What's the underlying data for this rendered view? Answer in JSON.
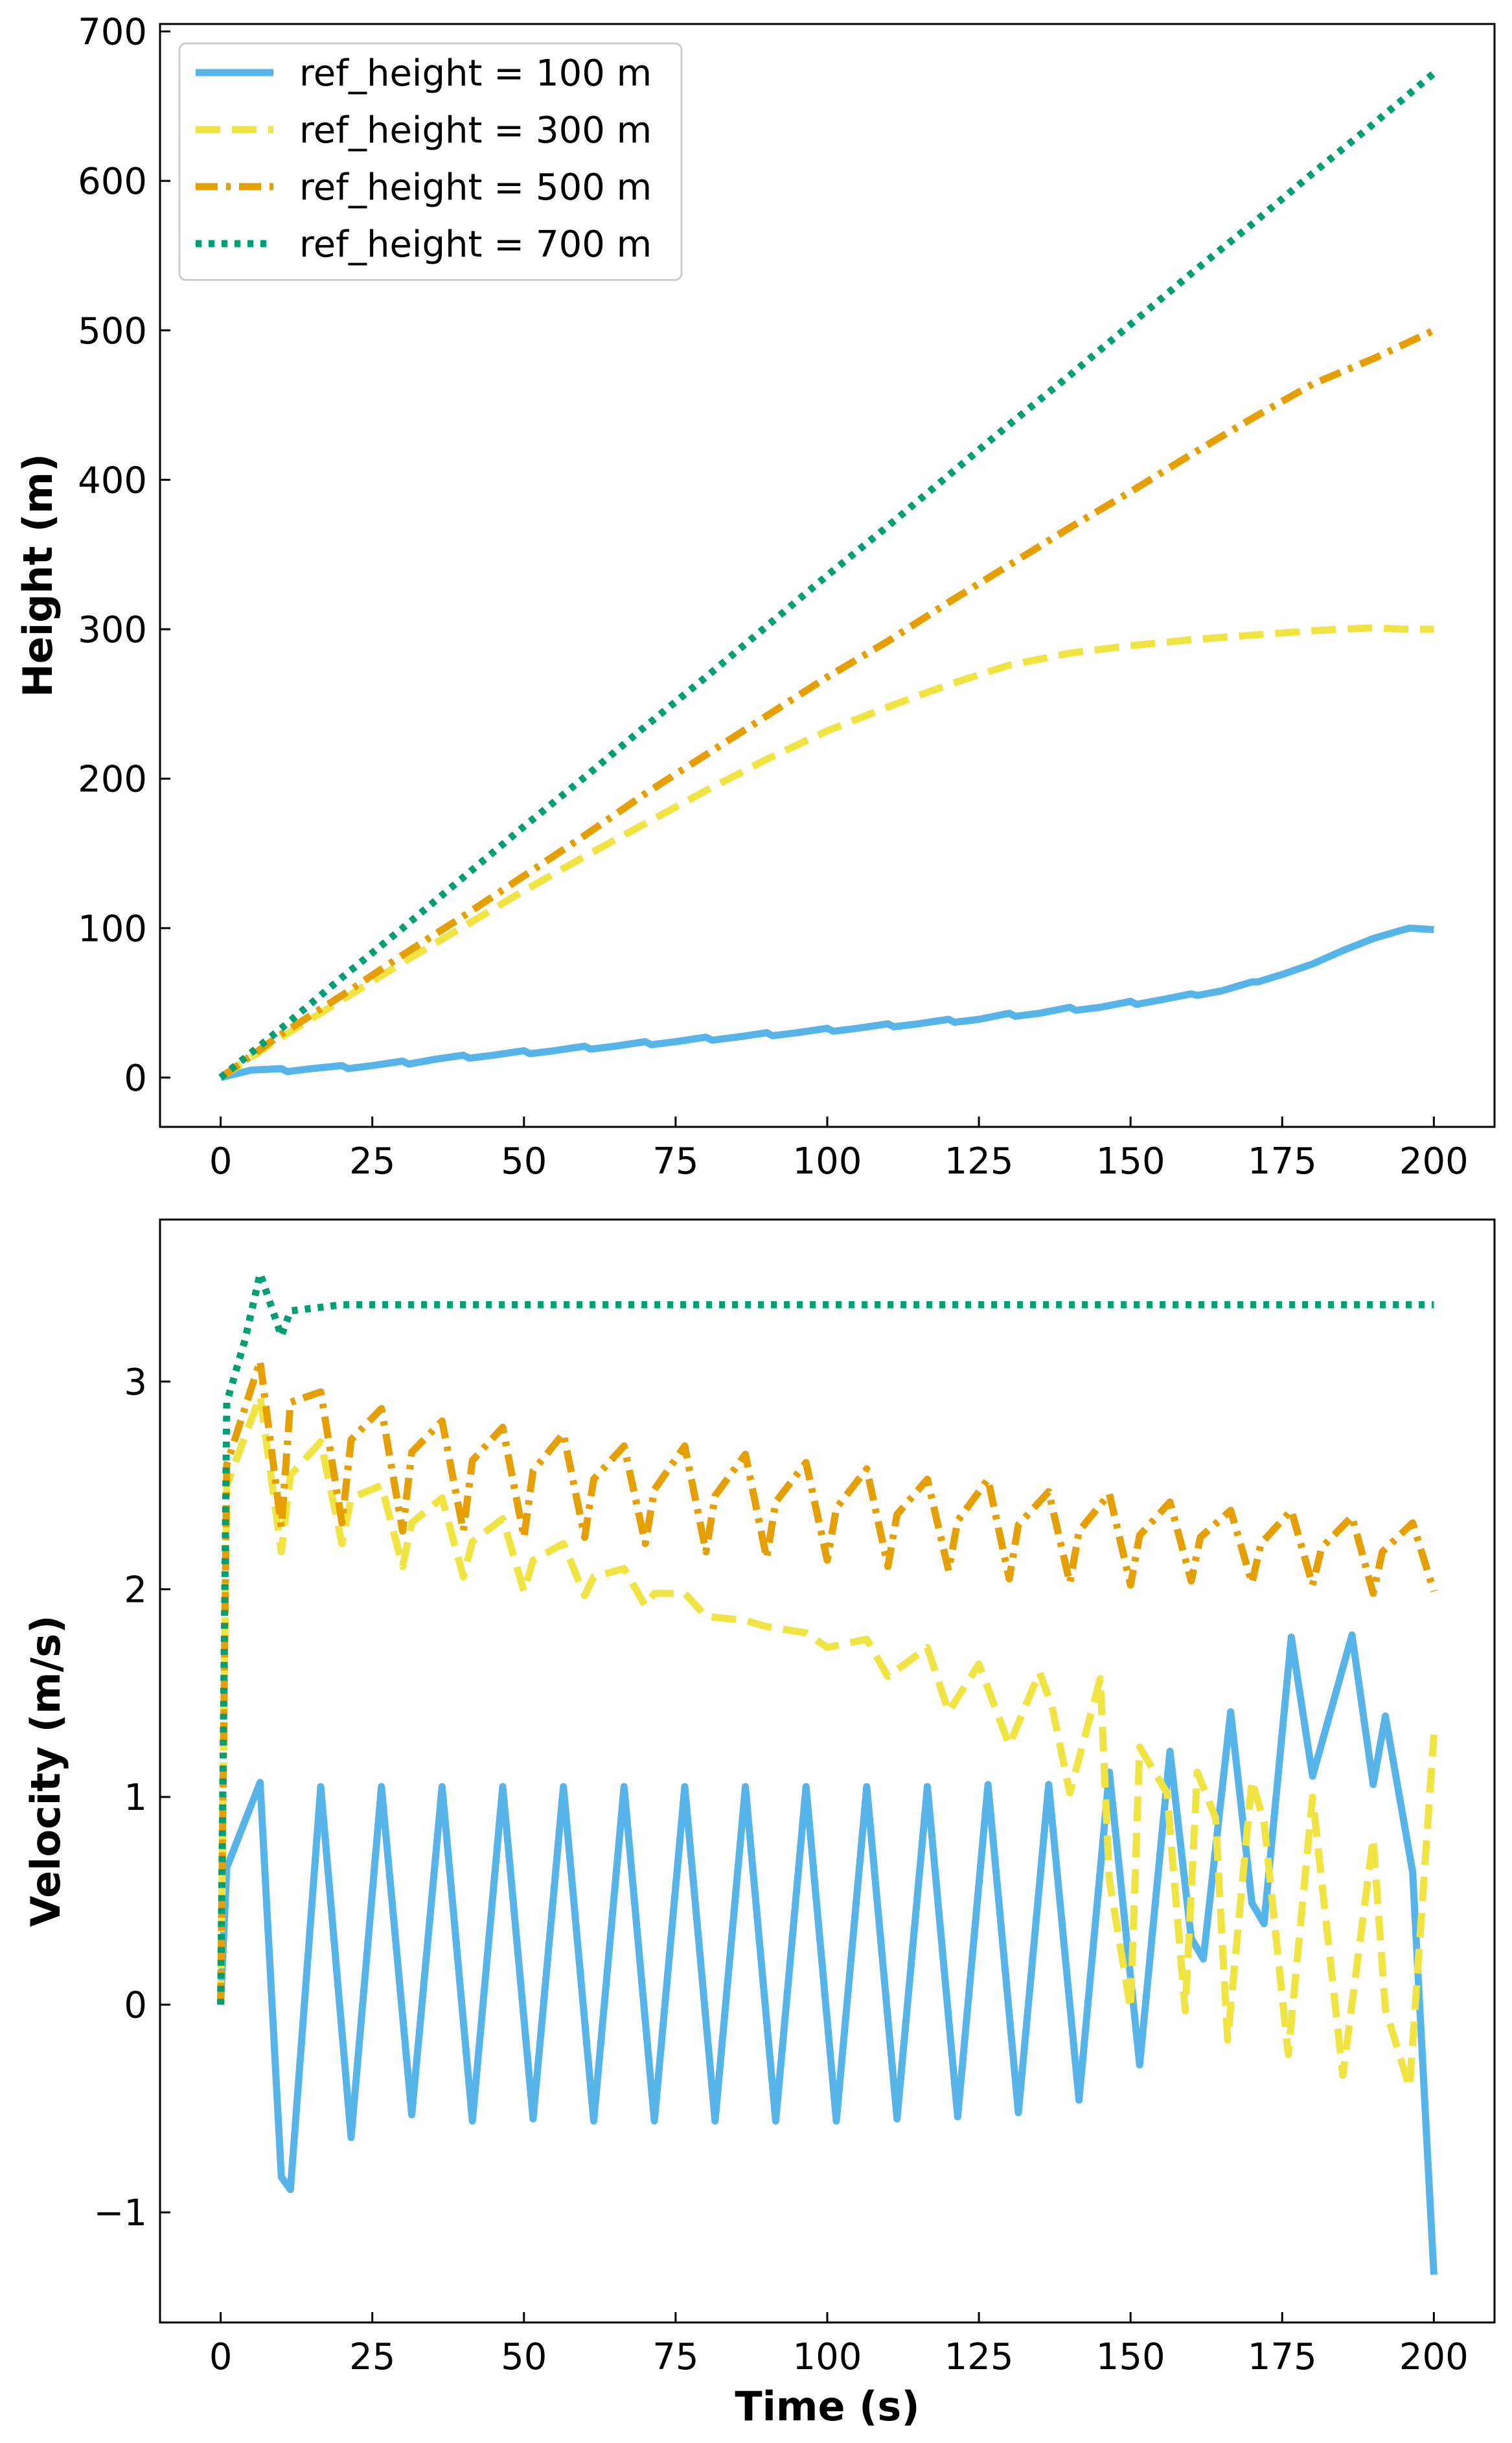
{
  "colors": {
    "ref100": "#56B4E9",
    "ref300": "#F0E442",
    "ref500": "#E69F00",
    "ref700": "#009E73"
  },
  "chart_data": [
    {
      "type": "line",
      "title": "",
      "xlabel": "",
      "ylabel": "Height (m)",
      "xlim": [
        -10,
        210
      ],
      "ylim": [
        -33,
        705
      ],
      "xticks": [
        0,
        25,
        50,
        75,
        100,
        125,
        150,
        175,
        200
      ],
      "xtick_labels": [
        "0",
        "25",
        "50",
        "75",
        "100",
        "125",
        "150",
        "175",
        "200"
      ],
      "yticks": [
        0,
        100,
        200,
        300,
        400,
        500,
        600,
        700
      ],
      "ytick_labels": [
        "0",
        "100",
        "200",
        "300",
        "400",
        "500",
        "600",
        "700"
      ],
      "grid": false,
      "legend": "upper-left",
      "series": [
        {
          "name": "ref_height = 100 m",
          "color": "#56B4E9",
          "style": "solid",
          "x": [
            0,
            5,
            10,
            11,
            15,
            20,
            21,
            25,
            30,
            31,
            35,
            40,
            41,
            45,
            50,
            51,
            55,
            60,
            61,
            65,
            70,
            71,
            75,
            80,
            81,
            85,
            90,
            91,
            95,
            100,
            101,
            105,
            110,
            111,
            115,
            120,
            121,
            125,
            130,
            131,
            135,
            140,
            141,
            145,
            150,
            151,
            155,
            160,
            161,
            165,
            170,
            171,
            175,
            180,
            185,
            190,
            195,
            196,
            200
          ],
          "y": [
            0,
            5,
            6,
            4,
            6,
            8,
            6,
            8,
            11,
            9,
            12,
            15,
            13,
            15,
            18,
            16,
            18,
            21,
            19,
            21,
            24,
            22,
            24,
            27,
            25,
            27,
            30,
            28,
            30,
            33,
            31,
            33,
            36,
            34,
            36,
            39,
            37,
            39,
            43,
            41,
            43,
            47,
            45,
            47,
            51,
            49,
            52,
            56,
            55,
            58,
            64,
            64,
            69,
            76,
            85,
            93,
            99,
            100,
            99
          ]
        },
        {
          "name": "ref_height = 300 m",
          "color": "#F0E442",
          "style": "dashed",
          "x": [
            0,
            10,
            20,
            30,
            40,
            50,
            60,
            70,
            80,
            90,
            100,
            110,
            120,
            130,
            140,
            150,
            160,
            170,
            180,
            190,
            195,
            200
          ],
          "y": [
            0,
            27,
            52,
            77,
            101,
            125,
            148,
            170,
            192,
            213,
            232,
            248,
            263,
            276,
            284,
            289,
            293,
            296,
            299,
            301,
            300,
            300
          ]
        },
        {
          "name": "ref_height = 500 m",
          "color": "#E69F00",
          "style": "dashdot",
          "x": [
            0,
            10,
            20,
            30,
            40,
            50,
            60,
            70,
            80,
            90,
            100,
            110,
            120,
            130,
            140,
            150,
            160,
            170,
            180,
            190,
            200
          ],
          "y": [
            0,
            29,
            55,
            82,
            108,
            135,
            162,
            190,
            216,
            242,
            268,
            292,
            318,
            343,
            368,
            392,
            417,
            441,
            464,
            481,
            500
          ]
        },
        {
          "name": "ref_height = 700 m",
          "color": "#009E73",
          "style": "dotted",
          "x": [
            0,
            10,
            20,
            30,
            40,
            50,
            60,
            70,
            80,
            90,
            100,
            110,
            120,
            130,
            140,
            150,
            160,
            170,
            180,
            190,
            200
          ],
          "y": [
            0,
            33,
            67,
            100,
            134,
            168,
            201,
            235,
            268,
            302,
            336,
            369,
            403,
            437,
            470,
            504,
            538,
            571,
            605,
            638,
            672
          ]
        }
      ]
    },
    {
      "type": "line",
      "title": "",
      "xlabel": "Time (s)",
      "ylabel": "Velocity (m/s)",
      "xlim": [
        -10,
        210
      ],
      "ylim": [
        -1.53,
        3.78
      ],
      "xticks": [
        0,
        25,
        50,
        75,
        100,
        125,
        150,
        175,
        200
      ],
      "xtick_labels": [
        "0",
        "25",
        "50",
        "75",
        "100",
        "125",
        "150",
        "175",
        "200"
      ],
      "yticks": [
        -1,
        0,
        1,
        2,
        3
      ],
      "ytick_labels": [
        "−1",
        "0",
        "1",
        "2",
        "3"
      ],
      "grid": false,
      "legend": "none",
      "series": [
        {
          "name": "ref_height = 100 m",
          "color": "#56B4E9",
          "style": "solid",
          "x": [
            0,
            1,
            6.5,
            10,
            11.5,
            16.5,
            21.5,
            26.5,
            31.5,
            36.5,
            41.5,
            46.5,
            51.5,
            56.5,
            61.5,
            66.5,
            71.5,
            76.5,
            81.5,
            86.5,
            91.5,
            96.5,
            101.5,
            106.5,
            111.5,
            116.5,
            121.5,
            126.5,
            131.5,
            136.5,
            141.5,
            146.5,
            151.5,
            156.5,
            160,
            162,
            166.5,
            170,
            172,
            176.5,
            180,
            186.5,
            190,
            192,
            196.5,
            200
          ],
          "y": [
            0,
            0.66,
            1.07,
            -0.83,
            -0.89,
            1.05,
            -0.64,
            1.05,
            -0.53,
            1.05,
            -0.56,
            1.05,
            -0.55,
            1.05,
            -0.56,
            1.05,
            -0.56,
            1.05,
            -0.56,
            1.05,
            -0.56,
            1.05,
            -0.56,
            1.05,
            -0.55,
            1.05,
            -0.54,
            1.06,
            -0.52,
            1.06,
            -0.46,
            1.12,
            -0.29,
            1.22,
            0.32,
            0.22,
            1.41,
            0.49,
            0.39,
            1.77,
            1.1,
            1.78,
            1.06,
            1.39,
            0.64,
            -1.3
          ]
        },
        {
          "name": "ref_height = 300 m",
          "color": "#F0E442",
          "style": "dashed",
          "x": [
            0,
            1,
            6.5,
            10,
            11.5,
            16.5,
            20,
            21.5,
            26.5,
            30,
            31.5,
            36.5,
            40,
            41.5,
            46.5,
            50,
            51.5,
            56.5,
            60,
            61.5,
            66.5,
            70,
            71.5,
            76.5,
            80,
            86.5,
            90,
            96.5,
            100,
            106.5,
            110,
            116.5,
            120,
            125,
            130,
            135,
            137,
            140,
            145,
            146.5,
            150,
            151.5,
            156,
            159,
            161,
            164,
            166,
            170,
            172,
            176,
            180,
            185,
            190,
            192,
            196,
            200
          ],
          "y": [
            0,
            2.5,
            2.93,
            2.18,
            2.55,
            2.71,
            2.22,
            2.44,
            2.5,
            2.11,
            2.32,
            2.44,
            2.06,
            2.23,
            2.34,
            1.99,
            2.14,
            2.22,
            1.97,
            2.06,
            2.1,
            1.92,
            1.98,
            1.98,
            1.87,
            1.85,
            1.82,
            1.79,
            1.72,
            1.76,
            1.58,
            1.72,
            1.41,
            1.64,
            1.25,
            1.6,
            1.44,
            1.02,
            1.57,
            0.6,
            -0.02,
            1.24,
            1.02,
            -0.03,
            1.12,
            0.9,
            -0.17,
            1.08,
            0.88,
            -0.24,
            1.0,
            -0.34,
            0.8,
            -0.02,
            -0.4,
            1.3
          ]
        },
        {
          "name": "ref_height = 500 m",
          "color": "#E69F00",
          "style": "dashdot",
          "x": [
            0,
            1,
            6.5,
            10,
            11.5,
            16.5,
            20,
            21.5,
            26.5,
            30,
            31.5,
            36.5,
            40,
            41.5,
            46.5,
            50,
            51.5,
            56.5,
            60,
            61.5,
            66.5,
            70,
            71.5,
            76.5,
            80,
            81.5,
            86.5,
            90,
            91.5,
            96.5,
            100,
            101.5,
            106.5,
            110,
            111.5,
            116.5,
            120,
            121.5,
            126.5,
            130,
            131.5,
            136.5,
            140,
            141.5,
            146.5,
            150,
            151.5,
            156.5,
            160,
            161.5,
            166.5,
            170,
            171.5,
            176.5,
            180,
            181.5,
            186.5,
            190,
            191.5,
            196.5,
            200
          ],
          "y": [
            0,
            2.6,
            3.1,
            2.3,
            2.9,
            2.95,
            2.32,
            2.72,
            2.87,
            2.28,
            2.66,
            2.81,
            2.28,
            2.62,
            2.78,
            2.25,
            2.57,
            2.75,
            2.25,
            2.53,
            2.69,
            2.22,
            2.48,
            2.69,
            2.18,
            2.45,
            2.65,
            2.15,
            2.42,
            2.61,
            2.14,
            2.39,
            2.58,
            2.11,
            2.36,
            2.53,
            2.09,
            2.33,
            2.53,
            2.05,
            2.31,
            2.47,
            2.03,
            2.28,
            2.46,
            2.02,
            2.26,
            2.42,
            2.04,
            2.25,
            2.38,
            2.03,
            2.22,
            2.38,
            2.02,
            2.2,
            2.35,
            1.98,
            2.18,
            2.32,
            1.99
          ]
        },
        {
          "name": "ref_height = 700 m",
          "color": "#009E73",
          "style": "dotted",
          "x": [
            0,
            1,
            4,
            6.5,
            10,
            11.5,
            20,
            40,
            60,
            80,
            100,
            120,
            140,
            160,
            180,
            200
          ],
          "y": [
            0,
            2.9,
            3.2,
            3.52,
            3.22,
            3.34,
            3.37,
            3.37,
            3.37,
            3.37,
            3.37,
            3.37,
            3.37,
            3.37,
            3.37,
            3.37
          ]
        }
      ]
    }
  ]
}
